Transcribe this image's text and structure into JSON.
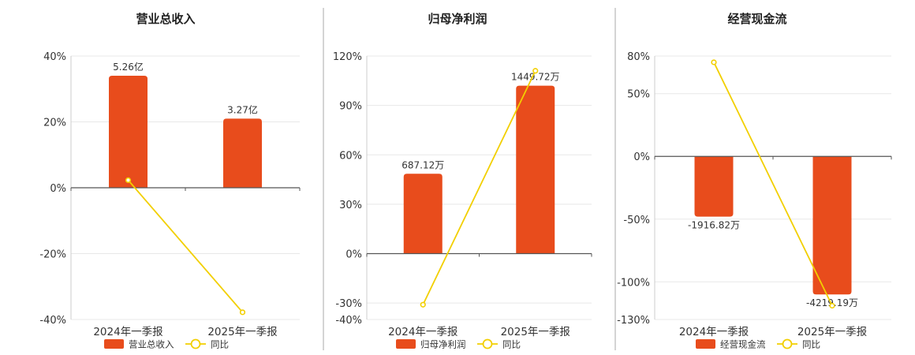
{
  "chart_data": [
    {
      "type": "bar",
      "title": "营业总收入",
      "categories": [
        "2024年一季报",
        "2025年一季报"
      ],
      "series": [
        {
          "name": "营业总收入",
          "type": "bar",
          "values": [
            34,
            21
          ],
          "labels": [
            "5.26亿",
            "3.27亿"
          ]
        },
        {
          "name": "同比",
          "type": "line",
          "values": [
            2.3,
            -37.8
          ]
        }
      ],
      "ylim": [
        -40,
        40
      ],
      "yticks": [
        -40,
        -20,
        0,
        20,
        40
      ],
      "ytick_labels": [
        "-40%",
        "-20%",
        "0%",
        "20%",
        "40%"
      ],
      "colors": {
        "bar": "#e84c1c",
        "line": "#f2cf00"
      },
      "grid": true,
      "legend": "bottom"
    },
    {
      "type": "bar",
      "title": "归母净利润",
      "categories": [
        "2024年一季报",
        "2025年一季报"
      ],
      "series": [
        {
          "name": "归母净利润",
          "type": "bar",
          "values": [
            48.5,
            102
          ],
          "labels": [
            "687.12万",
            "1449.72万"
          ]
        },
        {
          "name": "同比",
          "type": "line",
          "values": [
            -31,
            111
          ]
        }
      ],
      "ylim": [
        -40,
        120
      ],
      "yticks": [
        -40,
        -30,
        0,
        30,
        60,
        90,
        120
      ],
      "ytick_labels": [
        "-40%",
        "-30%",
        "0%",
        "30%",
        "60%",
        "90%",
        "120%"
      ],
      "colors": {
        "bar": "#e84c1c",
        "line": "#f2cf00"
      },
      "grid": true,
      "legend": "bottom"
    },
    {
      "type": "bar",
      "title": "经营现金流",
      "categories": [
        "2024年一季报",
        "2025年一季报"
      ],
      "series": [
        {
          "name": "经营现金流",
          "type": "bar",
          "values": [
            -48,
            -110
          ],
          "labels": [
            "-1916.82万",
            "-4219.19万"
          ]
        },
        {
          "name": "同比",
          "type": "line",
          "values": [
            75,
            -119
          ]
        }
      ],
      "ylim": [
        -130,
        80
      ],
      "yticks": [
        -130,
        -100,
        -50,
        0,
        50,
        80
      ],
      "ytick_labels": [
        "-130%",
        "-100%",
        "-50%",
        "0%",
        "50%",
        "80%"
      ],
      "colors": {
        "bar": "#e84c1c",
        "line": "#f2cf00"
      },
      "grid": true,
      "legend": "bottom"
    }
  ]
}
